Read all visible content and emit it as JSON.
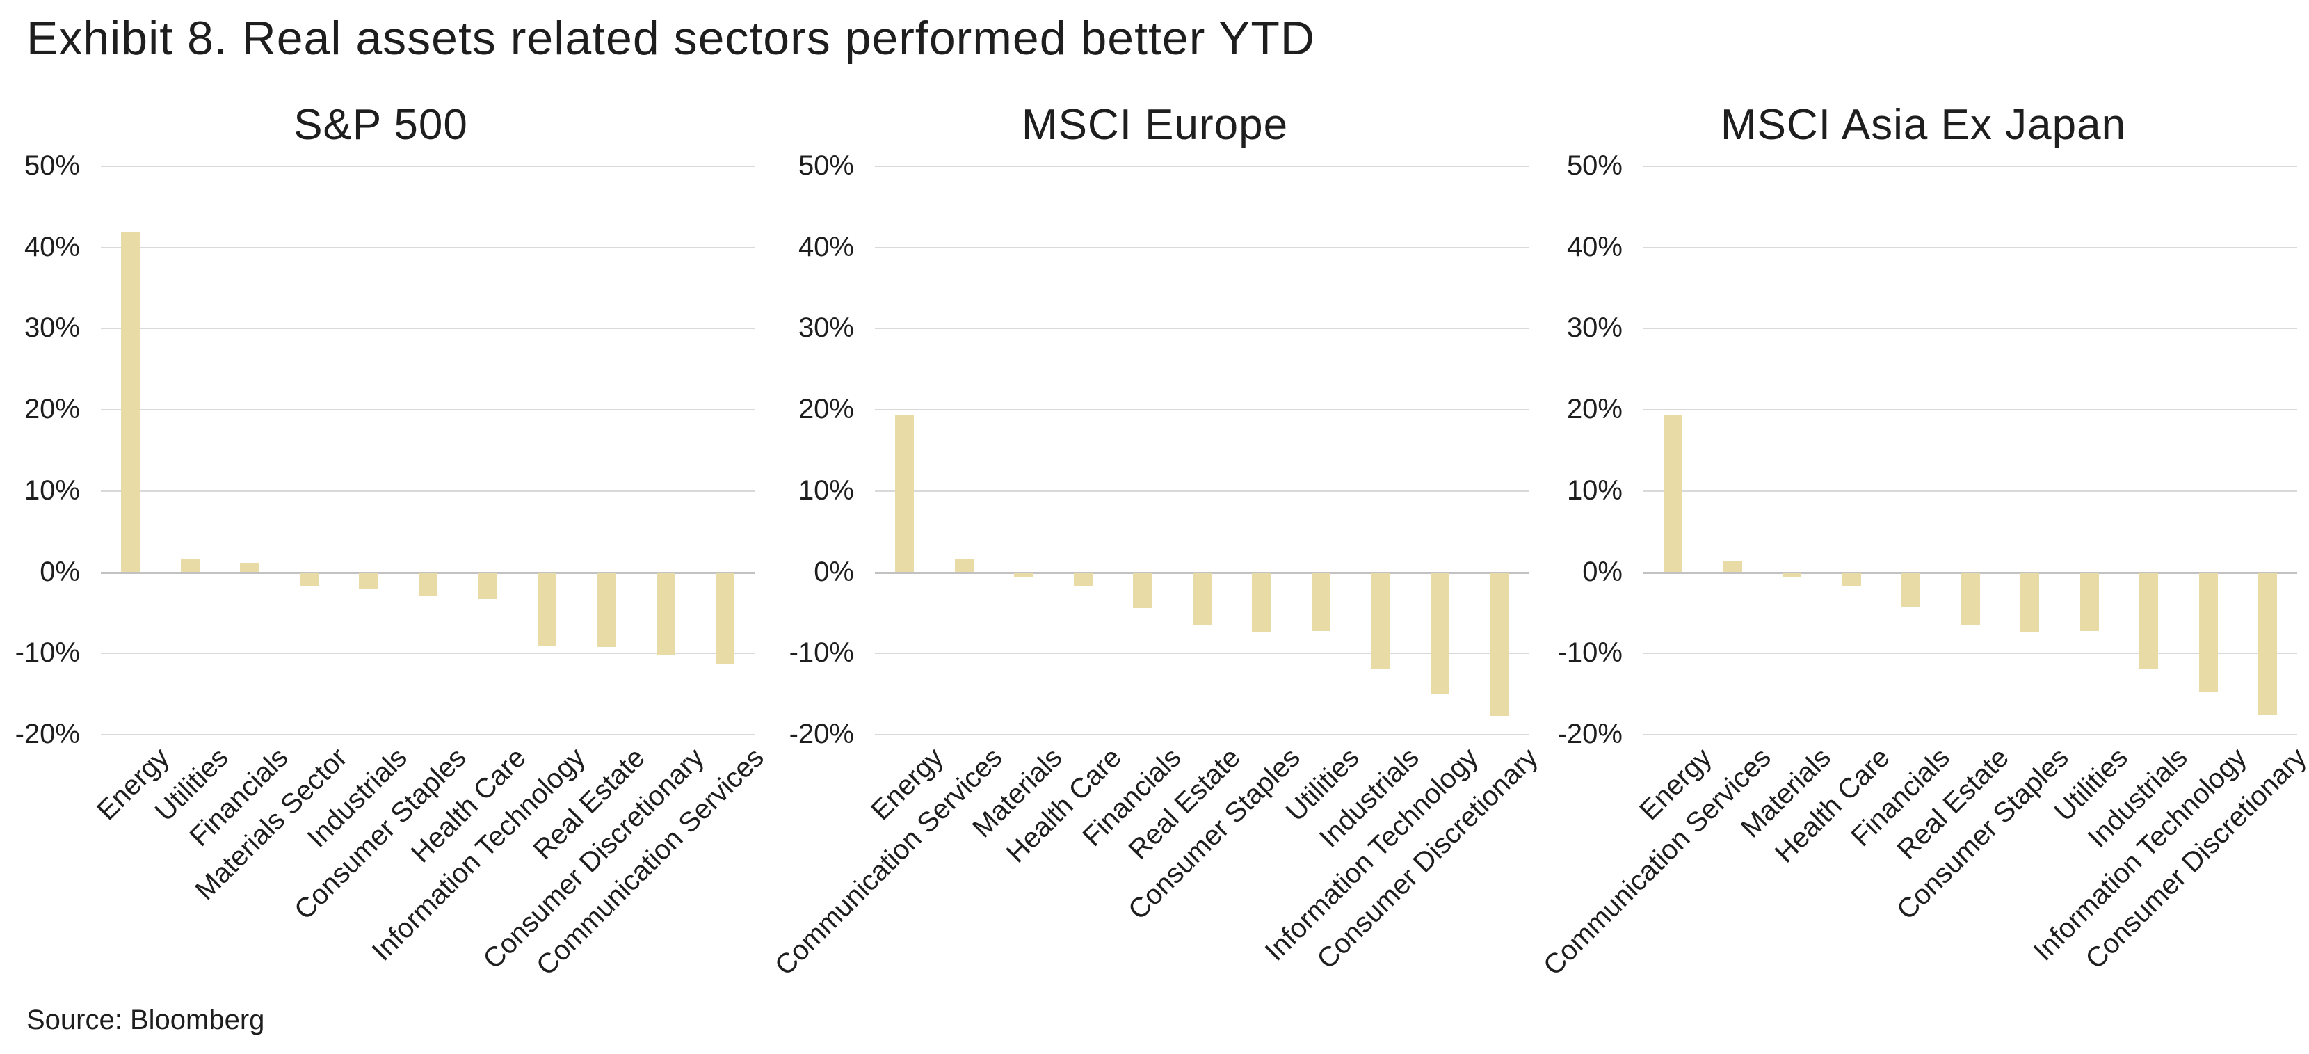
{
  "page": {
    "title": "Exhibit 8. Real assets related sectors performed better YTD",
    "source": "Source: Bloomberg"
  },
  "colors": {
    "bar": "#e8dba5",
    "gridline": "#d9d9d9",
    "zero_axis": "#c2c2c2",
    "text": "#1e1e1e"
  },
  "axis": {
    "ticks": [
      "50%",
      "40%",
      "30%",
      "20%",
      "10%",
      "0%",
      "-10%",
      "-20%"
    ],
    "max_percent": 50,
    "min_percent": -20,
    "step_percent": 10,
    "grid": true,
    "legend": "none"
  },
  "chart_data": [
    {
      "type": "bar",
      "title": "S&P 500",
      "ylabel": "",
      "xlabel": "",
      "ylim": [
        -20,
        50
      ],
      "categories": [
        "Energy",
        "Utilities",
        "Financials",
        "Materials Sector",
        "Industrials",
        "Consumer Staples",
        "Health Care",
        "Information Technology",
        "Real Estate",
        "Consumer Discretionary",
        "Communication Services"
      ],
      "values": [
        41.9,
        1.6,
        1.1,
        -1.5,
        -2.0,
        -2.7,
        -3.2,
        -8.9,
        -9.1,
        -10.0,
        -11.2
      ]
    },
    {
      "type": "bar",
      "title": "MSCI Europe",
      "ylabel": "",
      "xlabel": "",
      "ylim": [
        -20,
        50
      ],
      "categories": [
        "Energy",
        "Communication Services",
        "Materials",
        "Health Care",
        "Financials",
        "Real Estate",
        "Consumer Staples",
        "Utilities",
        "Industrials",
        "Information Technology",
        "Consumer Discretionary"
      ],
      "values": [
        19.3,
        1.5,
        -0.4,
        -1.5,
        -4.3,
        -6.3,
        -7.2,
        -7.1,
        -11.8,
        -14.8,
        -17.6
      ]
    },
    {
      "type": "bar",
      "title": "MSCI Asia Ex Japan",
      "ylabel": "",
      "xlabel": "",
      "ylim": [
        -20,
        50
      ],
      "categories": [
        "Energy",
        "Communication Services",
        "Materials",
        "Health Care",
        "Financials",
        "Real Estate",
        "Consumer Staples",
        "Utilities",
        "Industrials",
        "Information Technology",
        "Consumer Discretionary"
      ],
      "values": [
        19.3,
        1.4,
        -0.5,
        -1.5,
        -4.2,
        -6.4,
        -7.2,
        -7.1,
        -11.7,
        -14.6,
        -17.5
      ]
    }
  ]
}
